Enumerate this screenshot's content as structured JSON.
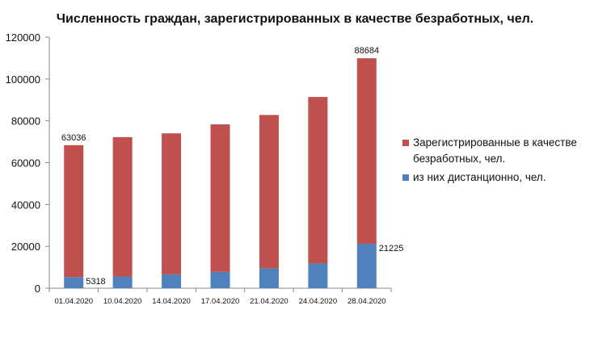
{
  "chart_data": {
    "type": "bar",
    "stacked": true,
    "title": "Численность граждан, зарегистрированных в качестве безработных, чел.",
    "xlabel": "",
    "ylabel": "",
    "categories": [
      "01.04.2020",
      "10.04.2020",
      "14.04.2020",
      "17.04.2020",
      "21.04.2020",
      "24.04.2020",
      "28.04.2020"
    ],
    "ylim": [
      0,
      120000
    ],
    "yticks": [
      0,
      20000,
      40000,
      60000,
      80000,
      100000,
      120000
    ],
    "grid": false,
    "legend_position": "right",
    "series": [
      {
        "name": "из них дистанционно, чел.",
        "color": "#4f81bd",
        "values": [
          5318,
          5600,
          6600,
          7800,
          9500,
          11800,
          21225
        ],
        "data_labels": [
          "5318",
          "",
          "",
          "",
          "",
          "",
          "21225"
        ]
      },
      {
        "name": "Зарегистрированные в качестве безработных, чел.",
        "color": "#c0504d",
        "values": [
          63036,
          66600,
          67400,
          70500,
          73300,
          79600,
          88684
        ],
        "data_labels": [
          "63036",
          "",
          "",
          "",
          "",
          "",
          "88684"
        ]
      }
    ],
    "legend": [
      {
        "lines": [
          "Зарегистрированные в качестве",
          "безработных, чел."
        ],
        "color": "#c0504d"
      },
      {
        "lines": [
          "из них дистанционно, чел."
        ],
        "color": "#4f81bd"
      }
    ]
  }
}
